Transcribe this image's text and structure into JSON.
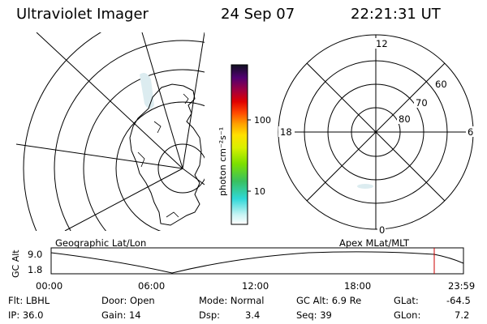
{
  "header": {
    "title": "Ultraviolet Imager",
    "date": "24 Sep 07",
    "time": "22:21:31 UT"
  },
  "colorbar": {
    "label": "photon cm⁻²s⁻¹",
    "ticks": [
      "100",
      "10"
    ]
  },
  "polar_plot": {
    "mlt_labels": {
      "top": "12",
      "left": "18",
      "right": "6",
      "bottom": "0"
    },
    "lat_labels": [
      "60",
      "70",
      "80"
    ]
  },
  "orbit_panel": {
    "left_label": "Geographic Lat/Lon",
    "right_label": "Apex MLat/MLT",
    "y_axis_label": "GC Alt",
    "y_ticks": [
      "9.0",
      "1.8"
    ],
    "x_ticks": [
      "00:00",
      "06:00",
      "12:00",
      "18:00",
      "23:59"
    ]
  },
  "info": {
    "filter": "Flt: LBHL",
    "ip": "IP: 36.0",
    "door": "Door: Open",
    "gain": "Gain: 14",
    "mode": "Mode: Normal",
    "dsp_label": "Dsp:",
    "dsp_value": "3.4",
    "gc_alt": "GC Alt: 6.9 Re",
    "seq": "Seq: 39",
    "glat_label": "GLat:",
    "glat_value": "-64.5",
    "glon_label": "GLon:",
    "glon_value": "7.2"
  },
  "colors": {
    "line": "#000000",
    "marker": "#cc0000",
    "aurora": "#dcecf0"
  }
}
